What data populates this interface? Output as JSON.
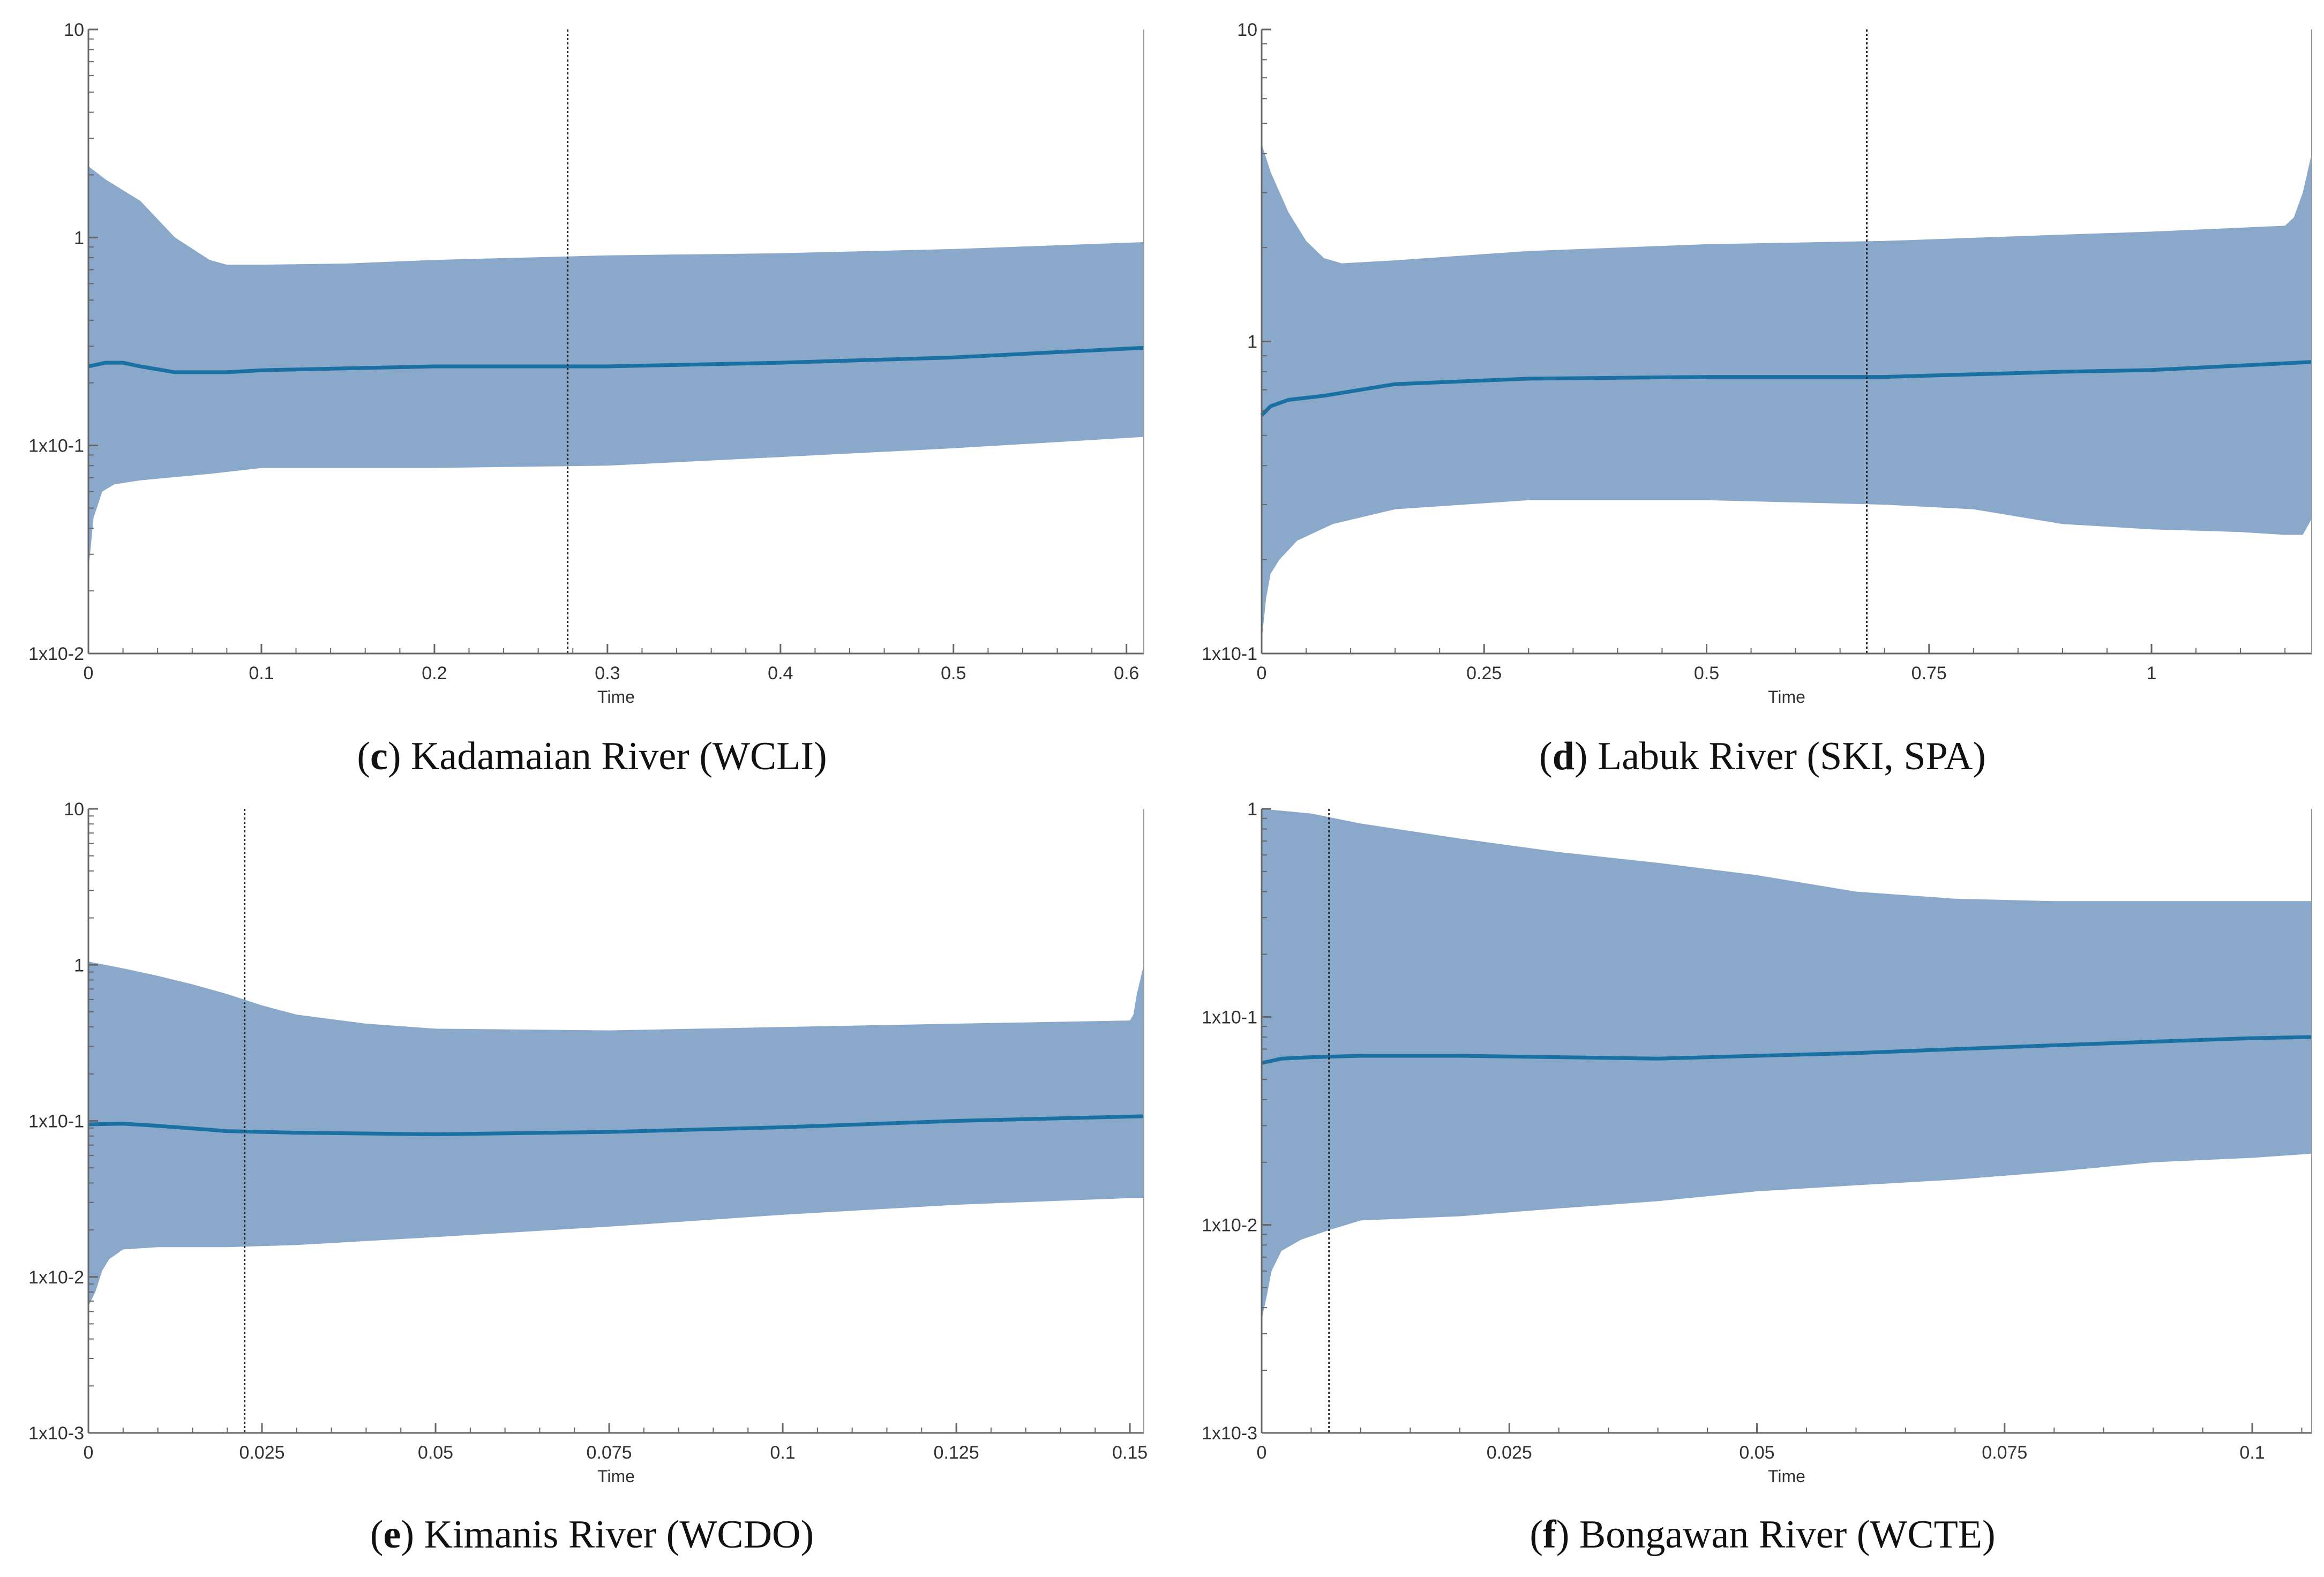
{
  "colors": {
    "band": "#8aa8ca",
    "median": "#1a6fa3",
    "axis": "#666666",
    "marker": "#222222"
  },
  "chart_data": [
    {
      "id": "c",
      "type": "area",
      "caption_letter": "c",
      "caption_rest": ") Kadamaian River (WCLI)",
      "xlabel": "Time",
      "ylabel": "",
      "yscale": "log",
      "xlim": [
        0,
        0.61
      ],
      "ylim": [
        0.01,
        10
      ],
      "x_ticks": [
        0,
        0.1,
        0.2,
        0.3,
        0.4,
        0.5,
        0.6
      ],
      "x_tick_labels": [
        "0",
        "0.1",
        "0.2",
        "0.3",
        "0.4",
        "0.5",
        "0.6"
      ],
      "y_ticks": [
        0.01,
        0.1,
        1,
        10
      ],
      "y_tick_labels": [
        "1x10-2",
        "1x10-1",
        "1",
        "10"
      ],
      "marker_x": 0.277,
      "series": [
        {
          "name": "upper 95% HPD",
          "x": [
            0,
            0.01,
            0.03,
            0.05,
            0.07,
            0.08,
            0.1,
            0.15,
            0.2,
            0.3,
            0.4,
            0.5,
            0.61
          ],
          "values": [
            2.2,
            1.9,
            1.5,
            1.0,
            0.78,
            0.74,
            0.74,
            0.75,
            0.78,
            0.82,
            0.84,
            0.88,
            0.95
          ]
        },
        {
          "name": "median",
          "x": [
            0,
            0.01,
            0.02,
            0.03,
            0.05,
            0.08,
            0.1,
            0.2,
            0.3,
            0.4,
            0.5,
            0.61
          ],
          "values": [
            0.24,
            0.25,
            0.25,
            0.24,
            0.225,
            0.225,
            0.23,
            0.24,
            0.24,
            0.25,
            0.265,
            0.295
          ]
        },
        {
          "name": "lower 95% HPD",
          "x": [
            0,
            0.003,
            0.008,
            0.015,
            0.03,
            0.07,
            0.1,
            0.2,
            0.3,
            0.4,
            0.5,
            0.61
          ],
          "values": [
            0.025,
            0.045,
            0.06,
            0.065,
            0.068,
            0.073,
            0.078,
            0.078,
            0.08,
            0.088,
            0.097,
            0.11
          ]
        }
      ]
    },
    {
      "id": "d",
      "type": "area",
      "caption_letter": "d",
      "caption_rest": ") Labuk River (SKI, SPA)",
      "xlabel": "Time",
      "ylabel": "",
      "yscale": "log",
      "xlim": [
        0,
        1.18
      ],
      "ylim": [
        0.1,
        10
      ],
      "x_ticks": [
        0,
        0.25,
        0.5,
        0.75,
        1
      ],
      "x_tick_labels": [
        "0",
        "0.25",
        "0.5",
        "0.75",
        "1"
      ],
      "y_ticks": [
        0.1,
        1,
        10
      ],
      "y_tick_labels": [
        "1x10-1",
        "1",
        "10"
      ],
      "marker_x": 0.68,
      "series": [
        {
          "name": "upper 95% HPD",
          "x": [
            0,
            0.01,
            0.03,
            0.05,
            0.07,
            0.09,
            0.15,
            0.3,
            0.5,
            0.7,
            0.9,
            1.0,
            1.15,
            1.16,
            1.17,
            1.18
          ],
          "values": [
            4.3,
            3.5,
            2.6,
            2.1,
            1.85,
            1.78,
            1.82,
            1.95,
            2.05,
            2.1,
            2.2,
            2.25,
            2.35,
            2.5,
            3.0,
            4.0
          ]
        },
        {
          "name": "median",
          "x": [
            0,
            0.01,
            0.03,
            0.07,
            0.15,
            0.3,
            0.5,
            0.7,
            0.9,
            1.0,
            1.18
          ],
          "values": [
            0.58,
            0.62,
            0.65,
            0.67,
            0.73,
            0.76,
            0.77,
            0.77,
            0.8,
            0.81,
            0.86
          ]
        },
        {
          "name": "lower 95% HPD",
          "x": [
            0,
            0.005,
            0.01,
            0.02,
            0.04,
            0.08,
            0.15,
            0.3,
            0.5,
            0.7,
            0.8,
            0.9,
            1.0,
            1.1,
            1.15,
            1.17,
            1.18
          ],
          "values": [
            0.11,
            0.15,
            0.18,
            0.2,
            0.23,
            0.26,
            0.29,
            0.31,
            0.31,
            0.3,
            0.29,
            0.26,
            0.25,
            0.245,
            0.24,
            0.24,
            0.27
          ]
        }
      ]
    },
    {
      "id": "e",
      "type": "area",
      "caption_letter": "e",
      "caption_rest": ") Kimanis River (WCDO)",
      "xlabel": "Time",
      "ylabel": "",
      "yscale": "log",
      "xlim": [
        0,
        0.152
      ],
      "ylim": [
        0.001,
        10
      ],
      "x_ticks": [
        0,
        0.025,
        0.05,
        0.075,
        0.1,
        0.125,
        0.15
      ],
      "x_tick_labels": [
        "0",
        "0.025",
        "0.05",
        "0.075",
        "0.1",
        "0.125",
        "0.15"
      ],
      "y_ticks": [
        0.001,
        0.01,
        0.1,
        1,
        10
      ],
      "y_tick_labels": [
        "1x10-3",
        "1x10-2",
        "1x10-1",
        "1",
        "10"
      ],
      "marker_x": 0.0225,
      "series": [
        {
          "name": "upper 95% HPD",
          "x": [
            0,
            0.005,
            0.01,
            0.015,
            0.02,
            0.025,
            0.03,
            0.04,
            0.05,
            0.075,
            0.1,
            0.125,
            0.15,
            0.1505,
            0.151,
            0.152
          ],
          "values": [
            1.05,
            0.95,
            0.85,
            0.75,
            0.65,
            0.55,
            0.48,
            0.42,
            0.39,
            0.38,
            0.4,
            0.42,
            0.44,
            0.48,
            0.65,
            1.0
          ]
        },
        {
          "name": "median",
          "x": [
            0,
            0.005,
            0.01,
            0.02,
            0.03,
            0.05,
            0.075,
            0.1,
            0.125,
            0.152
          ],
          "values": [
            0.095,
            0.096,
            0.093,
            0.086,
            0.084,
            0.082,
            0.085,
            0.091,
            0.1,
            0.107
          ]
        },
        {
          "name": "lower 95% HPD",
          "x": [
            0,
            0.001,
            0.002,
            0.003,
            0.005,
            0.01,
            0.02,
            0.03,
            0.05,
            0.075,
            0.1,
            0.125,
            0.15,
            0.152
          ],
          "values": [
            0.0065,
            0.008,
            0.011,
            0.013,
            0.015,
            0.0155,
            0.0155,
            0.016,
            0.018,
            0.021,
            0.025,
            0.029,
            0.032,
            0.032
          ]
        }
      ]
    },
    {
      "id": "f",
      "type": "area",
      "caption_letter": "f",
      "caption_rest": ") Bongawan River (WCTE)",
      "xlabel": "Time",
      "ylabel": "",
      "yscale": "log",
      "xlim": [
        0,
        0.106
      ],
      "ylim": [
        0.001,
        1
      ],
      "x_ticks": [
        0,
        0.025,
        0.05,
        0.075,
        0.1
      ],
      "x_tick_labels": [
        "0",
        "0.025",
        "0.05",
        "0.075",
        "0.1"
      ],
      "y_ticks": [
        0.001,
        0.01,
        0.1,
        1
      ],
      "y_tick_labels": [
        "1x10-3",
        "1x10-2",
        "1x10-1",
        "1"
      ],
      "marker_x": 0.0068,
      "series": [
        {
          "name": "upper 95% HPD",
          "x": [
            0,
            0.005,
            0.01,
            0.02,
            0.03,
            0.04,
            0.05,
            0.06,
            0.07,
            0.08,
            0.09,
            0.1,
            0.106
          ],
          "values": [
            1.0,
            0.95,
            0.85,
            0.72,
            0.62,
            0.55,
            0.48,
            0.4,
            0.37,
            0.36,
            0.36,
            0.36,
            0.36
          ]
        },
        {
          "name": "median",
          "x": [
            0,
            0.002,
            0.005,
            0.01,
            0.02,
            0.03,
            0.04,
            0.05,
            0.06,
            0.07,
            0.08,
            0.09,
            0.1,
            0.106
          ],
          "values": [
            0.06,
            0.063,
            0.064,
            0.065,
            0.065,
            0.064,
            0.063,
            0.065,
            0.067,
            0.07,
            0.073,
            0.076,
            0.079,
            0.08
          ]
        },
        {
          "name": "lower 95% HPD",
          "x": [
            0,
            0.0005,
            0.001,
            0.002,
            0.004,
            0.007,
            0.01,
            0.02,
            0.03,
            0.04,
            0.05,
            0.06,
            0.07,
            0.08,
            0.09,
            0.1,
            0.106
          ],
          "values": [
            0.0035,
            0.0045,
            0.006,
            0.0075,
            0.0085,
            0.0095,
            0.0105,
            0.011,
            0.012,
            0.013,
            0.0145,
            0.0155,
            0.0165,
            0.018,
            0.02,
            0.021,
            0.022
          ]
        }
      ]
    }
  ]
}
